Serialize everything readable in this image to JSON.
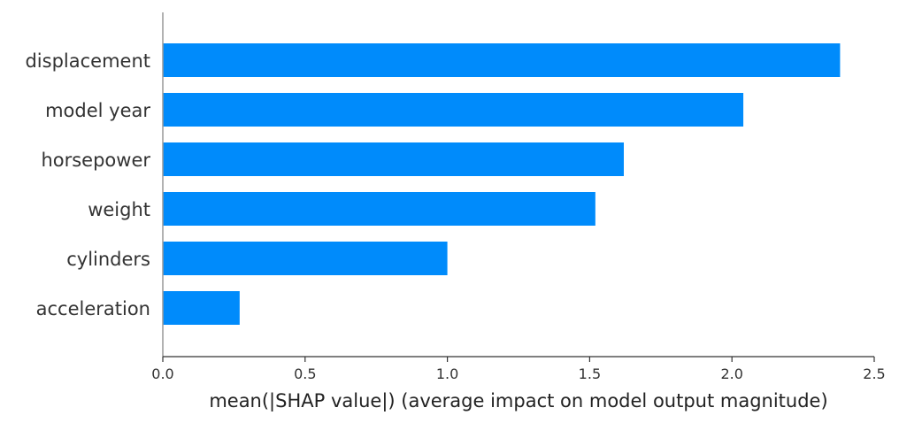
{
  "chart_data": {
    "type": "bar",
    "orientation": "horizontal",
    "categories": [
      "displacement",
      "model year",
      "horsepower",
      "weight",
      "cylinders",
      "acceleration"
    ],
    "values": [
      2.38,
      2.04,
      1.62,
      1.52,
      1.0,
      0.27
    ],
    "title": "",
    "xlabel": "mean(|SHAP value|) (average impact on model output magnitude)",
    "ylabel": "",
    "xlim": [
      0,
      2.5
    ],
    "xticks": [
      0.0,
      0.5,
      1.0,
      1.5,
      2.0,
      2.5
    ],
    "xtick_labels": [
      "0.0",
      "0.5",
      "1.0",
      "1.5",
      "2.0",
      "2.5"
    ],
    "grid": false,
    "bar_color": "#008bfb",
    "axis_color": "#333333"
  }
}
